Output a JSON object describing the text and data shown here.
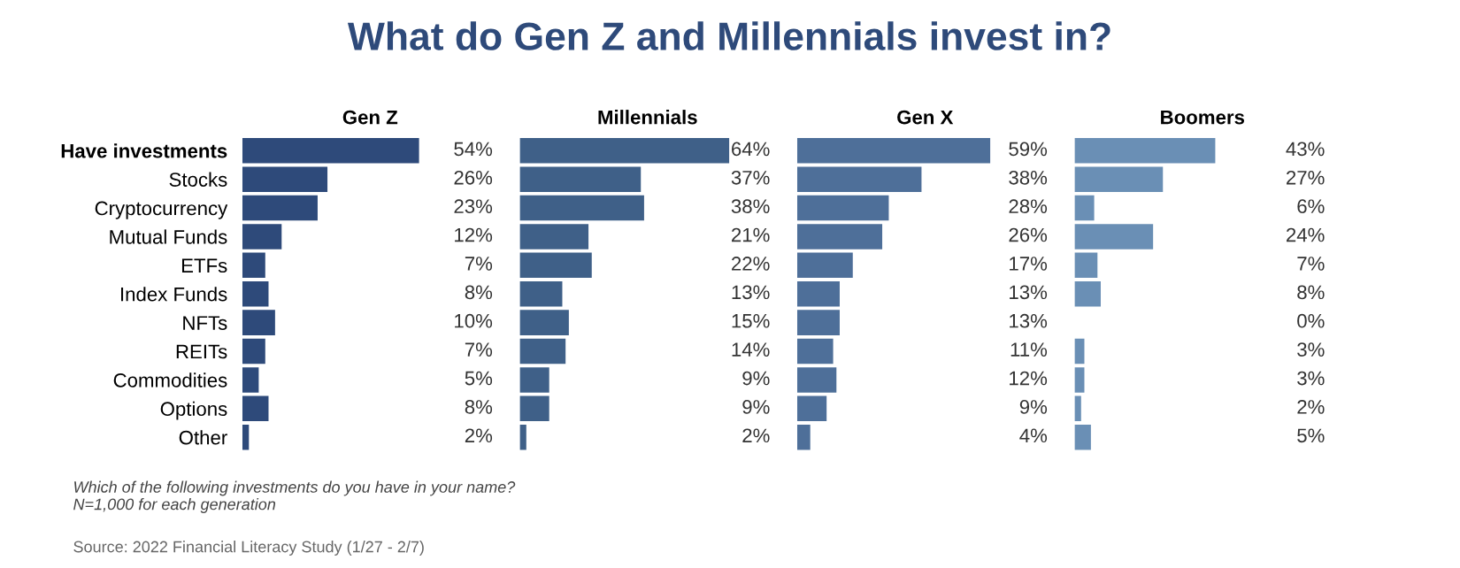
{
  "chart_data": [
    {
      "type": "bar",
      "orientation": "horizontal",
      "title": "What do Gen Z and Millennials invest in?",
      "subtitle": "Gen Z",
      "categories": [
        "Have investments",
        "Stocks",
        "Cryptocurrency",
        "Mutual Funds",
        "ETFs",
        "Index Funds",
        "NFTs",
        "REITs",
        "Commodities",
        "Options",
        "Other"
      ],
      "series": [
        {
          "color": "#2e4a7a",
          "values": [
            54,
            26,
            23,
            12,
            7,
            8,
            10,
            7,
            5,
            8,
            2
          ],
          "value_labels": [
            "54%",
            "26%",
            "23%",
            "12%",
            "7%",
            "8%",
            "10%",
            "7%",
            "5%",
            "8%",
            "2%"
          ]
        }
      ],
      "tick_labels": "y",
      "annotations": [
        "Which of the following investments do you have in your name?\nN=1,000 for each generation",
        "Source: 2022 Financial Literacy Study (1/27 - 2/7)"
      ]
    },
    {
      "type": "bar",
      "orientation": "horizontal",
      "subtitle": "Millennials",
      "categories": [
        null,
        null,
        null,
        null,
        null,
        null,
        null,
        null,
        null,
        null,
        null
      ],
      "series": [
        {
          "color": "#3f6088",
          "values": [
            64,
            37,
            38,
            21,
            22,
            13,
            15,
            14,
            9,
            9,
            2
          ],
          "value_labels": [
            "64%",
            "37%",
            "38%",
            "21%",
            "22%",
            "13%",
            "15%",
            "14%",
            "9%",
            "9%",
            "2%"
          ]
        }
      ],
      "tick_labels": false
    },
    {
      "type": "bar",
      "orientation": "horizontal",
      "subtitle": "Gen X",
      "categories": [
        null,
        null,
        null,
        null,
        null,
        null,
        null,
        null,
        null,
        null,
        null
      ],
      "series": [
        {
          "color": "#4e6f99",
          "values": [
            59,
            38,
            28,
            26,
            17,
            13,
            13,
            11,
            12,
            9,
            4
          ],
          "value_labels": [
            "59%",
            "38%",
            "28%",
            "26%",
            "17%",
            "13%",
            "13%",
            "11%",
            "12%",
            "9%",
            "4%"
          ]
        }
      ],
      "tick_labels": false
    },
    {
      "type": "bar",
      "orientation": "horizontal",
      "subtitle": "Boomers",
      "categories": [
        null,
        null,
        null,
        null,
        null,
        null,
        null,
        null,
        null,
        null,
        null
      ],
      "series": [
        {
          "color": "#6a8fb5",
          "values": [
            43,
            27,
            6,
            24,
            7,
            8,
            0,
            3,
            3,
            2,
            5
          ],
          "value_labels": [
            "43%",
            "27%",
            "6%",
            "24%",
            "7%",
            "8%",
            "0%",
            "3%",
            "3%",
            "2%",
            "5%"
          ]
        }
      ],
      "tick_labels": false
    }
  ]
}
